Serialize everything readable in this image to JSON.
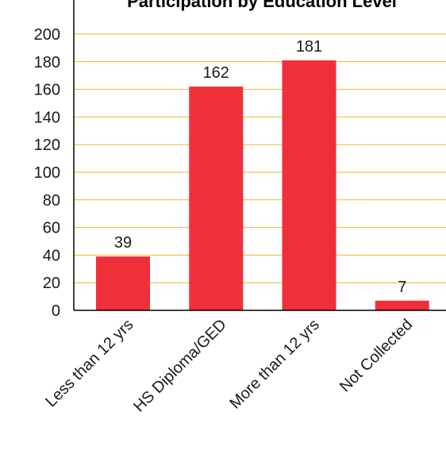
{
  "chart_data": {
    "type": "bar",
    "title": "Participation by Education Level",
    "categories": [
      "Less than 12 yrs",
      "HS Diploma/GED",
      "More than 12 yrs",
      "Not Collected"
    ],
    "values": [
      39,
      162,
      181,
      7
    ],
    "data_labels": [
      "39",
      "162",
      "181",
      "7"
    ],
    "ylim": [
      0,
      200
    ],
    "yticks": [
      0,
      20,
      40,
      60,
      80,
      100,
      120,
      140,
      160,
      180,
      200
    ],
    "grid": true,
    "xlabel": "",
    "ylabel": "",
    "colors": {
      "bar": "#ef3038",
      "grid": "#e8b730",
      "axis": "#000000",
      "text": "#1a1a1a"
    }
  }
}
